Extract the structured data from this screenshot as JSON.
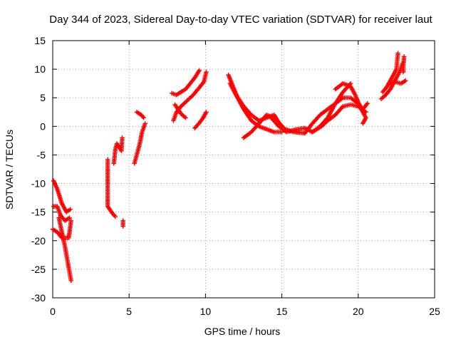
{
  "chart_data": {
    "type": "scatter",
    "title": "Day 344 of 2023, Sidereal Day-to-day VTEC variation (SDTVAR) for receiver laut",
    "xlabel": "GPS time / hours",
    "ylabel": "SDTVAR / TECUs",
    "xlim": [
      0,
      25
    ],
    "ylim": [
      -30,
      15
    ],
    "xticks": [
      0,
      5,
      10,
      15,
      20,
      25
    ],
    "yticks": [
      -30,
      -25,
      -20,
      -15,
      -10,
      -5,
      0,
      5,
      10,
      15
    ],
    "grid": true,
    "marker": "+",
    "color": "#ff0000",
    "segments": [
      {
        "name": "early-upper",
        "points": [
          [
            0.05,
            -9.5
          ],
          [
            0.3,
            -11
          ],
          [
            0.6,
            -13.5
          ],
          [
            0.9,
            -15
          ],
          [
            1.15,
            -14.5
          ]
        ]
      },
      {
        "name": "early-mid",
        "points": [
          [
            0.05,
            -14
          ],
          [
            0.3,
            -14
          ],
          [
            0.5,
            -15.5
          ],
          [
            0.8,
            -16.5
          ],
          [
            1.1,
            -16
          ]
        ]
      },
      {
        "name": "early-low",
        "points": [
          [
            0.0,
            -18
          ],
          [
            0.3,
            -18.5
          ],
          [
            0.6,
            -19.5
          ],
          [
            0.8,
            -19.5
          ],
          [
            1.05,
            -19.5
          ],
          [
            1.2,
            -16.5
          ]
        ]
      },
      {
        "name": "early-drop",
        "points": [
          [
            0.4,
            -16
          ],
          [
            0.6,
            -18.5
          ],
          [
            0.8,
            -21
          ],
          [
            1.0,
            -24
          ],
          [
            1.2,
            -27
          ]
        ]
      },
      {
        "name": "gap1",
        "points": [
          [
            3.6,
            -5.8
          ],
          [
            3.6,
            -10.5
          ],
          [
            3.6,
            -14
          ],
          [
            3.9,
            -15.2
          ],
          [
            4.1,
            -15.8
          ],
          [
            4.0,
            -6.5
          ],
          [
            4.1,
            -4
          ],
          [
            4.2,
            -3
          ],
          [
            4.5,
            -4.3
          ],
          [
            4.55,
            -2
          ],
          [
            4.6,
            -16.5
          ],
          [
            4.6,
            -17.5
          ]
        ]
      },
      {
        "name": "steep5",
        "points": [
          [
            5.35,
            -6.5
          ],
          [
            5.55,
            -4.5
          ],
          [
            5.7,
            -3
          ],
          [
            5.85,
            -1
          ],
          [
            6.05,
            0.5
          ]
        ]
      },
      {
        "name": "steep5b",
        "points": [
          [
            5.5,
            2.5
          ],
          [
            5.8,
            2
          ],
          [
            5.95,
            1.5
          ]
        ]
      },
      {
        "name": "arc8",
        "points": [
          [
            7.8,
            5.8
          ],
          [
            8.1,
            5.5
          ],
          [
            8.4,
            6
          ],
          [
            8.7,
            6.5
          ],
          [
            9.0,
            7.5
          ],
          [
            9.3,
            8.5
          ],
          [
            9.6,
            9.8
          ]
        ]
      },
      {
        "name": "arc8b",
        "points": [
          [
            7.9,
            1
          ],
          [
            8.1,
            2.5
          ],
          [
            8.4,
            3.5
          ],
          [
            8.8,
            4.5
          ],
          [
            9.2,
            5.5
          ],
          [
            9.6,
            6.8
          ],
          [
            9.9,
            7.8
          ],
          [
            10.05,
            9.5
          ]
        ]
      },
      {
        "name": "arc8c",
        "points": [
          [
            8.0,
            3.8
          ],
          [
            8.4,
            2.2
          ],
          [
            8.7,
            1.5
          ]
        ]
      },
      {
        "name": "arc9",
        "points": [
          [
            9.3,
            -0.3
          ],
          [
            9.6,
            0.6
          ],
          [
            9.85,
            1.5
          ],
          [
            10.05,
            2.5
          ]
        ]
      },
      {
        "name": "desc11",
        "points": [
          [
            11.5,
            9
          ],
          [
            11.8,
            7
          ],
          [
            12.1,
            5
          ],
          [
            12.5,
            3
          ],
          [
            13.0,
            1
          ],
          [
            13.5,
            0
          ],
          [
            14.0,
            -0.5
          ],
          [
            14.5,
            -1
          ],
          [
            15.0,
            -1
          ]
        ]
      },
      {
        "name": "desc11b",
        "points": [
          [
            11.6,
            7.5
          ],
          [
            12.0,
            5.5
          ],
          [
            12.5,
            3.5
          ],
          [
            13.0,
            2
          ],
          [
            13.5,
            1
          ],
          [
            14.0,
            1.5
          ],
          [
            14.5,
            2
          ],
          [
            15.0,
            -0.2
          ],
          [
            15.3,
            -0.7
          ]
        ]
      },
      {
        "name": "lowarc",
        "points": [
          [
            12.5,
            -2
          ],
          [
            13.0,
            -1
          ],
          [
            13.5,
            0.5
          ],
          [
            14.0,
            2
          ],
          [
            14.5,
            1.5
          ],
          [
            15.2,
            -0.5
          ],
          [
            15.8,
            -1
          ],
          [
            16.5,
            -1.2
          ]
        ]
      },
      {
        "name": "lowarc2",
        "points": [
          [
            14.3,
            1.5
          ],
          [
            14.8,
            0
          ],
          [
            15.3,
            -1
          ],
          [
            16.0,
            -0.5
          ],
          [
            16.5,
            -0.3
          ],
          [
            17.0,
            -1
          ],
          [
            17.5,
            0
          ],
          [
            18.0,
            1.5
          ],
          [
            18.5,
            4
          ],
          [
            19.0,
            6
          ],
          [
            19.5,
            7.5
          ]
        ]
      },
      {
        "name": "upswing",
        "points": [
          [
            16.5,
            -1.2
          ],
          [
            17.0,
            0.5
          ],
          [
            17.5,
            2
          ],
          [
            18.0,
            3
          ],
          [
            18.5,
            4
          ],
          [
            19.0,
            5
          ],
          [
            19.5,
            5
          ],
          [
            20.0,
            4
          ],
          [
            20.3,
            3
          ],
          [
            20.6,
            4
          ]
        ]
      },
      {
        "name": "upswing2",
        "points": [
          [
            17.0,
            -1
          ],
          [
            17.6,
            0
          ],
          [
            18.0,
            1
          ],
          [
            18.5,
            2
          ],
          [
            19.0,
            3.5
          ],
          [
            19.5,
            3.8
          ],
          [
            20.0,
            3.5
          ],
          [
            20.5,
            2.5
          ]
        ]
      },
      {
        "name": "upswing3",
        "points": [
          [
            18.5,
            6.5
          ],
          [
            19.0,
            7.5
          ],
          [
            19.5,
            7
          ],
          [
            19.8,
            5.5
          ],
          [
            20.2,
            3
          ],
          [
            20.5,
            1.5
          ],
          [
            20.3,
            0.5
          ]
        ]
      },
      {
        "name": "tail21",
        "points": [
          [
            21.5,
            4.8
          ],
          [
            21.8,
            5.5
          ],
          [
            22.1,
            6.5
          ],
          [
            22.4,
            8
          ],
          [
            22.7,
            9.5
          ],
          [
            22.9,
            11
          ]
        ]
      },
      {
        "name": "tail21b",
        "points": [
          [
            21.6,
            6
          ],
          [
            21.9,
            7
          ],
          [
            22.2,
            8.5
          ],
          [
            22.5,
            10
          ],
          [
            22.6,
            12.8
          ]
        ]
      },
      {
        "name": "tail21c",
        "points": [
          [
            22.0,
            7.5
          ],
          [
            22.4,
            7.8
          ],
          [
            22.8,
            7.5
          ],
          [
            23.1,
            8
          ]
        ]
      },
      {
        "name": "tail-isolated",
        "points": [
          [
            23.0,
            12.2
          ],
          [
            22.95,
            10.5
          ],
          [
            22.95,
            9.5
          ]
        ]
      }
    ]
  }
}
